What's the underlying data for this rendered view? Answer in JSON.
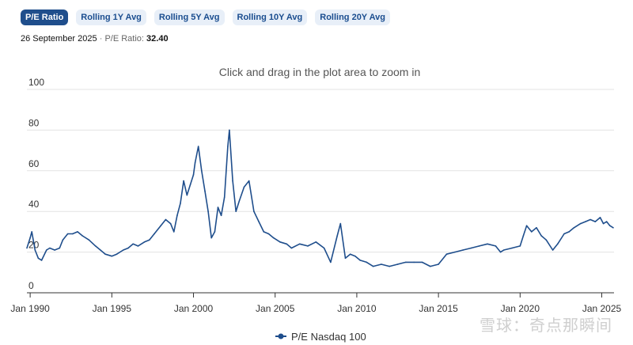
{
  "tabs": [
    {
      "label": "P/E Ratio",
      "active": true
    },
    {
      "label": "Rolling 1Y Avg",
      "active": false
    },
    {
      "label": "Rolling 5Y Avg",
      "active": false
    },
    {
      "label": "Rolling 10Y Avg",
      "active": false
    },
    {
      "label": "Rolling 20Y Avg",
      "active": false
    }
  ],
  "status": {
    "date": "26 September 2025",
    "separator": "·",
    "metric_label": "P/E Ratio:",
    "value": "32.40"
  },
  "watermark": "雪球：奇点那瞬间",
  "chart_data": {
    "type": "line",
    "subtitle": "Click and drag in the plot area to zoom in",
    "y_ticks": [
      "0",
      "20",
      "40",
      "60",
      "80",
      "100"
    ],
    "x_ticks": [
      "Jan 1990",
      "Jan 1995",
      "Jan 2000",
      "Jan 2005",
      "Jan 2010",
      "Jan 2015",
      "Jan 2020",
      "Jan 2025"
    ],
    "ylim": [
      0,
      100
    ],
    "xlim": [
      1989.8,
      2025.75
    ],
    "grid": true,
    "legend_position": "bottom",
    "color": "#1f4e8c",
    "series": [
      {
        "name": "P/E Nasdaq 100",
        "x": [
          1989.8,
          1990.0,
          1990.1,
          1990.3,
          1990.5,
          1990.7,
          1991.0,
          1991.2,
          1991.5,
          1991.8,
          1992.0,
          1992.3,
          1992.6,
          1992.9,
          1993.2,
          1993.6,
          1994.0,
          1994.3,
          1994.6,
          1995.0,
          1995.3,
          1995.7,
          1996.0,
          1996.3,
          1996.6,
          1997.0,
          1997.3,
          1997.6,
          1998.0,
          1998.3,
          1998.6,
          1998.8,
          1999.0,
          1999.2,
          1999.4,
          1999.6,
          1999.8,
          2000.0,
          2000.1,
          2000.3,
          2000.5,
          2000.7,
          2000.9,
          2001.1,
          2001.3,
          2001.5,
          2001.7,
          2001.9,
          2002.1,
          2002.2,
          2002.4,
          2002.6,
          2002.8,
          2003.1,
          2003.4,
          2003.7,
          2004.0,
          2004.3,
          2004.6,
          2004.9,
          2005.3,
          2005.7,
          2006.0,
          2006.5,
          2007.0,
          2007.5,
          2008.0,
          2008.4,
          2008.8,
          2009.0,
          2009.3,
          2009.6,
          2009.9,
          2010.2,
          2010.6,
          2011.0,
          2011.5,
          2012.0,
          2012.5,
          2013.0,
          2013.5,
          2014.0,
          2014.5,
          2015.0,
          2015.5,
          2016.0,
          2016.5,
          2017.0,
          2017.5,
          2018.0,
          2018.5,
          2018.8,
          2019.0,
          2019.5,
          2020.0,
          2020.2,
          2020.4,
          2020.7,
          2021.0,
          2021.3,
          2021.6,
          2022.0,
          2022.3,
          2022.7,
          2023.0,
          2023.3,
          2023.7,
          2024.0,
          2024.3,
          2024.6,
          2024.9,
          2025.1,
          2025.3,
          2025.5,
          2025.7
        ],
        "values": [
          22,
          27,
          30,
          21,
          17,
          16,
          21,
          22,
          21,
          22,
          26,
          29,
          29,
          30,
          28,
          26,
          23,
          21,
          19,
          18,
          19,
          21,
          22,
          24,
          23,
          25,
          26,
          29,
          33,
          36,
          34,
          30,
          38,
          44,
          55,
          48,
          53,
          58,
          64,
          72,
          60,
          50,
          40,
          27,
          30,
          42,
          38,
          47,
          72,
          80,
          55,
          40,
          45,
          52,
          55,
          40,
          35,
          30,
          29,
          27,
          25,
          24,
          22,
          24,
          23,
          25,
          22,
          15,
          28,
          34,
          17,
          19,
          18,
          16,
          15,
          13,
          14,
          13,
          14,
          15,
          15,
          15,
          13,
          14,
          19,
          20,
          21,
          22,
          23,
          24,
          23,
          20,
          21,
          22,
          23,
          28,
          33,
          30,
          32,
          28,
          26,
          21,
          24,
          29,
          30,
          32,
          34,
          35,
          36,
          35,
          37,
          34,
          35,
          33,
          32
        ]
      }
    ]
  }
}
